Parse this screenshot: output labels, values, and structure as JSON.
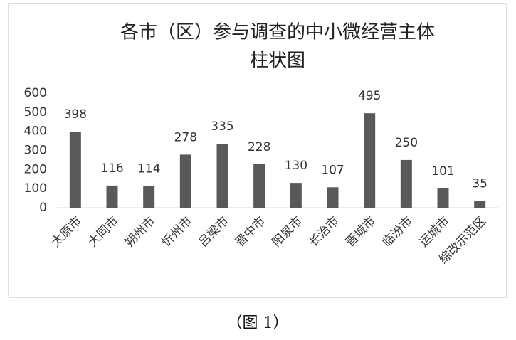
{
  "chart_data": {
    "type": "bar",
    "title": [
      "各市（区）参与调查的中小微经营主体",
      "柱状图"
    ],
    "categories": [
      "太原市",
      "大同市",
      "朔州市",
      "忻州市",
      "吕梁市",
      "晋中市",
      "阳泉市",
      "长治市",
      "晋城市",
      "临汾市",
      "运城市",
      "综改示范区"
    ],
    "values": [
      398,
      116,
      114,
      278,
      335,
      228,
      130,
      107,
      495,
      250,
      101,
      35
    ],
    "color": "#595959",
    "ylim": [
      0,
      600
    ],
    "yticks": [
      0,
      100,
      200,
      300,
      400,
      500,
      600
    ],
    "grid": false
  },
  "caption": "（图 1）"
}
